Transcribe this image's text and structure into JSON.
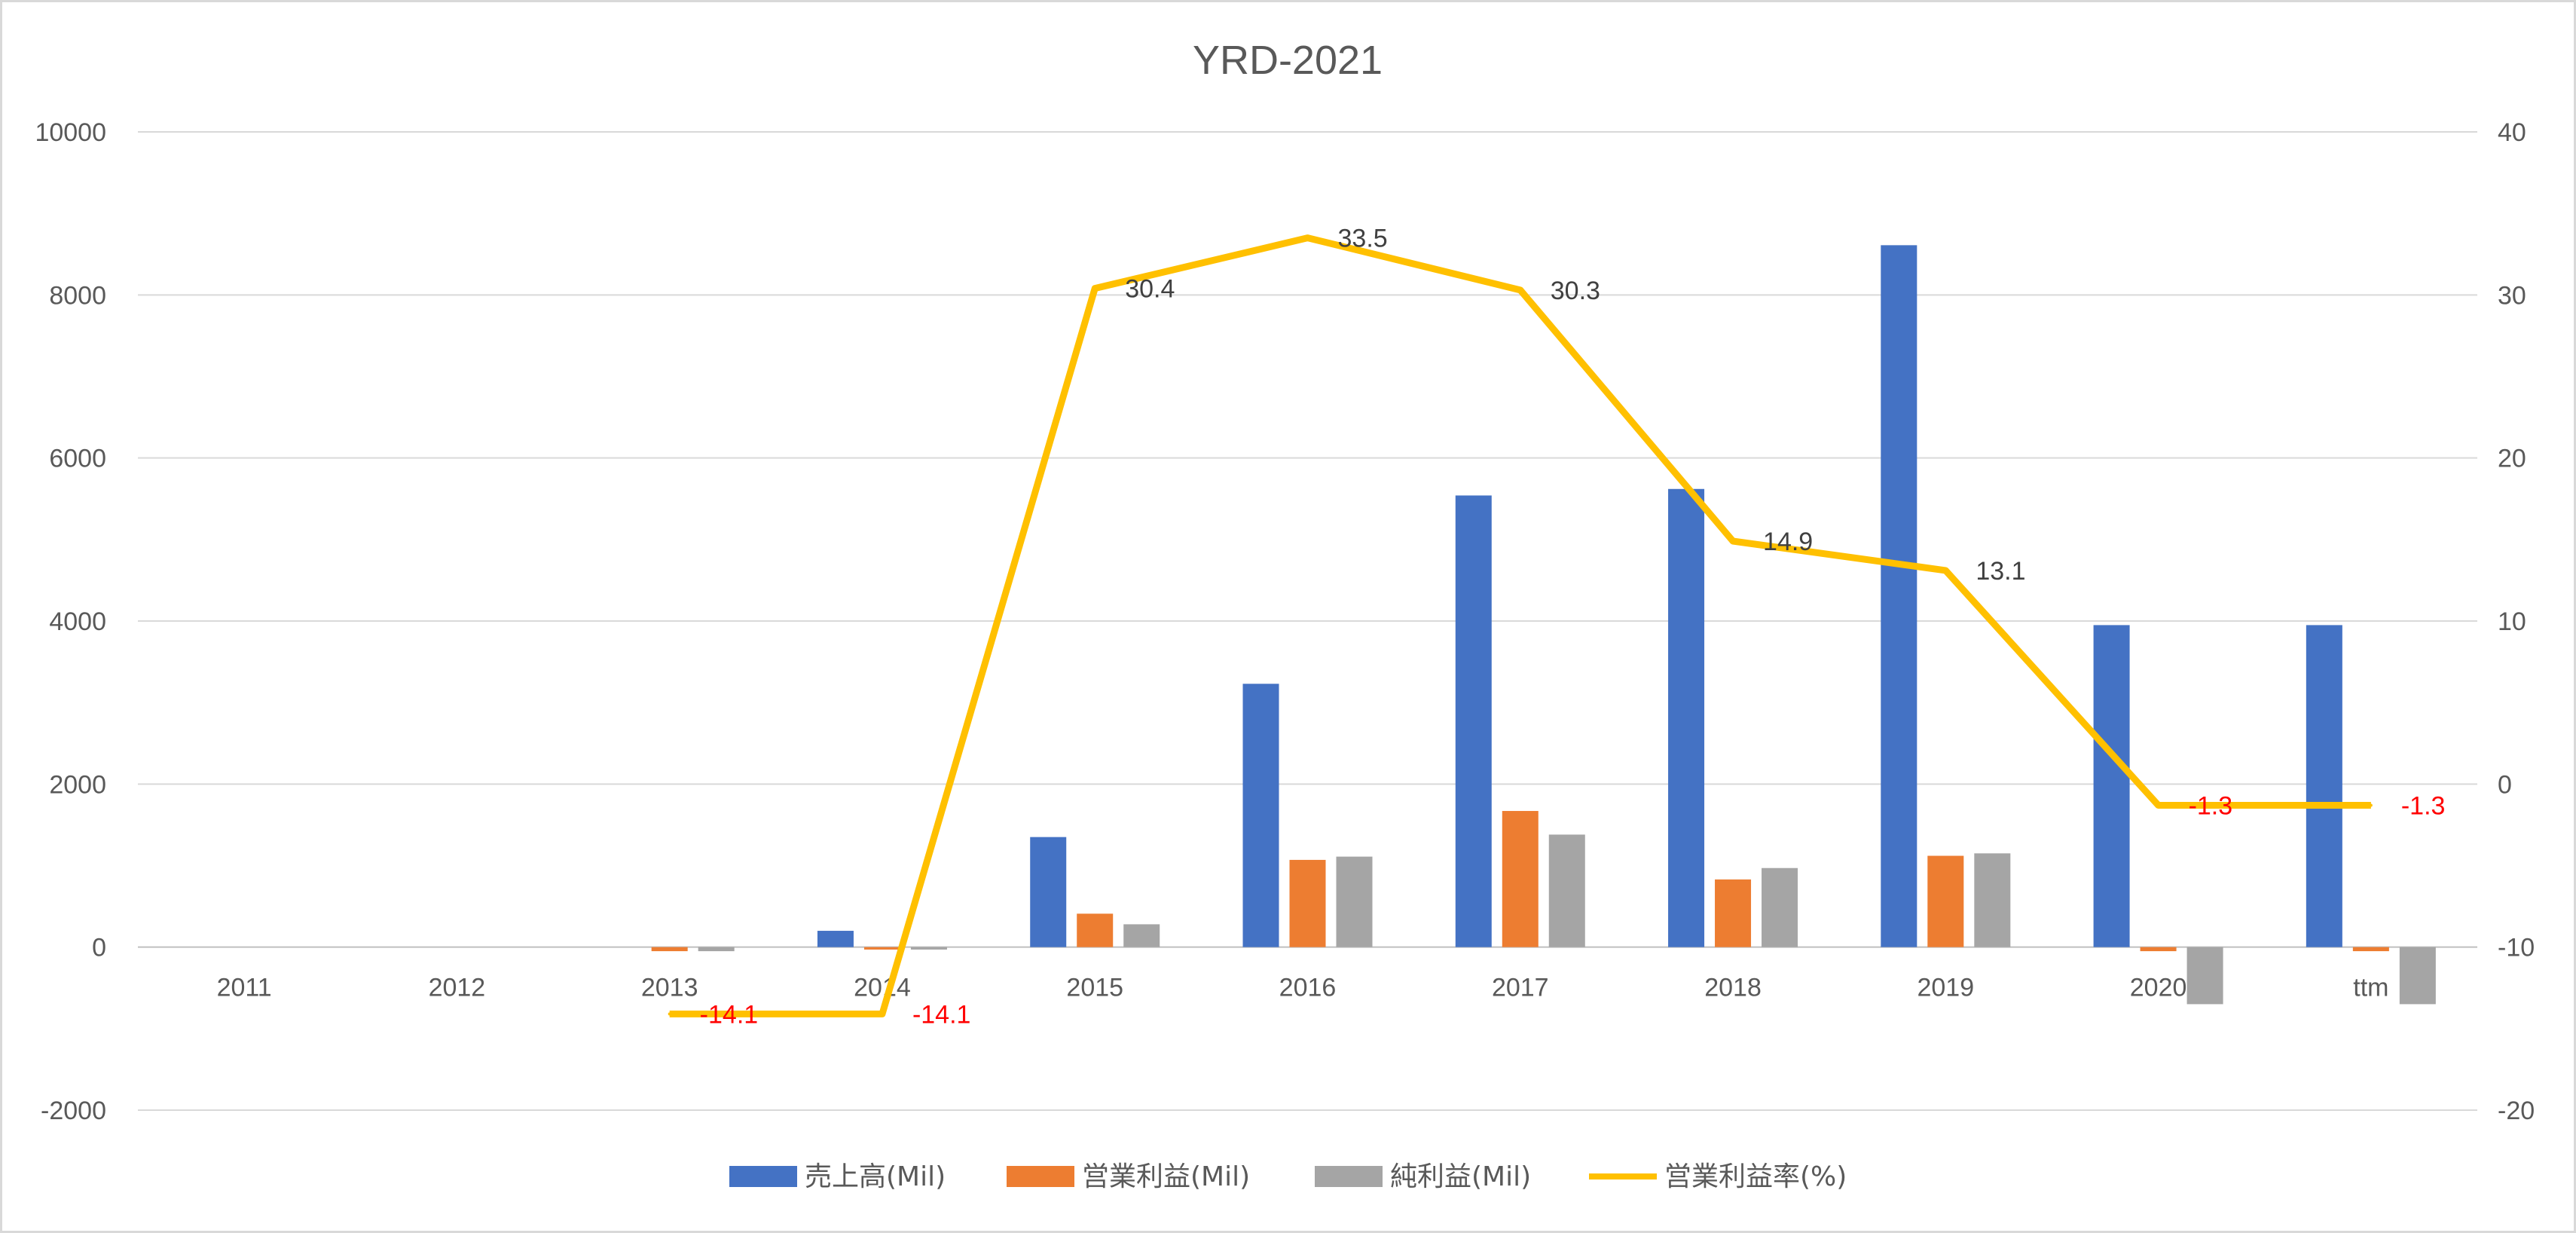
{
  "chart_data": {
    "type": "bar",
    "title": "YRD-2021",
    "categories": [
      "2011",
      "2012",
      "2013",
      "2014",
      "2015",
      "2016",
      "2017",
      "2018",
      "2019",
      "2020",
      "ttm"
    ],
    "series": [
      {
        "name": "売上高(Mil)",
        "type": "bar",
        "axis": "left",
        "color": "#4472C4",
        "values": [
          0,
          0,
          0,
          200,
          1350,
          3230,
          5540,
          5620,
          8610,
          3950,
          3950
        ]
      },
      {
        "name": "営業利益(Mil)",
        "type": "bar",
        "axis": "left",
        "color": "#ED7D31",
        "values": [
          0,
          0,
          -50,
          -30,
          410,
          1070,
          1670,
          830,
          1120,
          -50,
          -50
        ]
      },
      {
        "name": "純利益(Mil)",
        "type": "bar",
        "axis": "left",
        "color": "#A5A5A5",
        "values": [
          0,
          0,
          -50,
          -30,
          280,
          1110,
          1380,
          970,
          1150,
          -700,
          -700
        ]
      },
      {
        "name": "営業利益率(%)",
        "type": "line",
        "axis": "right",
        "color": "#FFC000",
        "values": [
          null,
          null,
          -14.1,
          -14.1,
          30.4,
          33.5,
          30.3,
          14.9,
          13.1,
          -1.3,
          -1.3
        ],
        "labels": [
          "",
          "",
          "-14.1",
          "-14.1",
          "30.4",
          "33.5",
          "30.3",
          "14.9",
          "13.1",
          "-1.3",
          "-1.3"
        ]
      }
    ],
    "y_left": {
      "min": -2000,
      "max": 10000,
      "ticks": [
        "-2000",
        "0",
        "2000",
        "4000",
        "6000",
        "8000",
        "10000"
      ]
    },
    "y_right": {
      "min": -20,
      "max": 40,
      "ticks": [
        "-20",
        "-10",
        "0",
        "10",
        "20",
        "30",
        "40"
      ]
    },
    "grid": true,
    "legend": "bottom",
    "label_colors": {
      "negative": "#FF0000",
      "positive": "#404040"
    }
  }
}
